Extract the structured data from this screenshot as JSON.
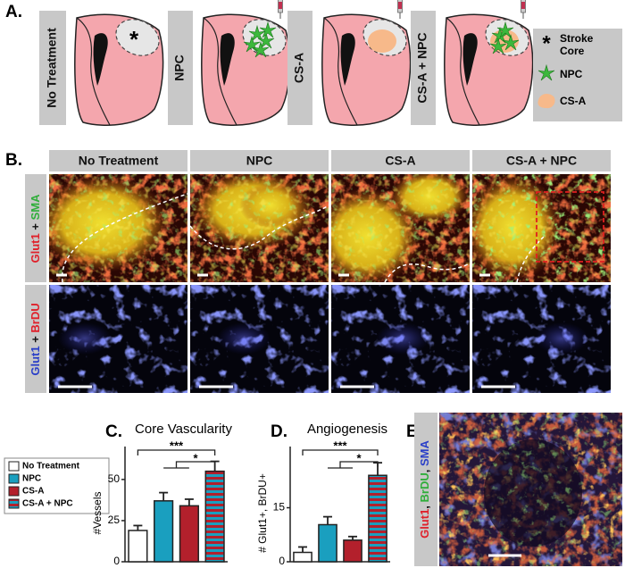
{
  "panel_a": {
    "label": "A.",
    "conditions": [
      "No Treatment",
      "NPC",
      "CS-A",
      "CS-A + NPC"
    ],
    "legend": [
      {
        "symbol": "*",
        "text": [
          "Stroke",
          "Core"
        ]
      },
      {
        "text": [
          "NPC"
        ]
      },
      {
        "text": [
          "CS-A"
        ]
      }
    ]
  },
  "panel_b": {
    "label": "B.",
    "columns": [
      "No Treatment",
      "NPC",
      "CS-A",
      "CS-A + NPC"
    ],
    "rows": [
      {
        "parts": [
          {
            "text": "Glut1",
            "color": "#e0202a"
          },
          {
            "text": " + ",
            "color": "#111111"
          },
          {
            "text": "SMA",
            "color": "#2fae3a"
          }
        ]
      },
      {
        "parts": [
          {
            "text": "Glut1",
            "color": "#2a3fc8"
          },
          {
            "text": " + ",
            "color": "#111111"
          },
          {
            "text": "BrDU",
            "color": "#e0202a"
          }
        ]
      }
    ]
  },
  "legend": [
    "No Treatment",
    "NPC",
    "CS-A",
    "CS-A + NPC"
  ],
  "chart_data": [
    {
      "type": "bar",
      "label": "C.",
      "title": "Core Vascularity",
      "ylabel": "#Vessels",
      "categories": [
        null,
        null,
        null,
        null
      ],
      "values": [
        19,
        37,
        34,
        55
      ],
      "errors": [
        3,
        5,
        4,
        6
      ],
      "colors": [
        "#ffffff",
        "#1a9fbf",
        "#b3202c",
        [
          "#b3202c",
          "#1a9fbf"
        ]
      ],
      "ylim": [
        0,
        70
      ],
      "yticks": [
        0,
        25,
        50
      ],
      "annotations": [
        "***",
        "*"
      ]
    },
    {
      "type": "bar",
      "label": "D.",
      "title": "Angiogenesis",
      "ylabel": "# Glut1+, BrDU+",
      "categories": [
        null,
        null,
        null,
        null
      ],
      "values": [
        2.6,
        10.3,
        6,
        24
      ],
      "errors": [
        1.5,
        2.2,
        1,
        3.5
      ],
      "colors": [
        "#ffffff",
        "#1a9fbf",
        "#b3202c",
        [
          "#b3202c",
          "#1a9fbf"
        ]
      ],
      "ylim": [
        0,
        32
      ],
      "yticks": [
        0,
        15
      ],
      "annotations": [
        "***",
        "*"
      ]
    }
  ],
  "panel_e": {
    "label": "E.",
    "parts": [
      {
        "text": "Glut1",
        "color": "#e0202a"
      },
      {
        "text": ", ",
        "color": "#111111"
      },
      {
        "text": "BrDU",
        "color": "#2fae3a"
      },
      {
        "text": ", ",
        "color": "#111111"
      },
      {
        "text": "SMA",
        "color": "#2a3fc8"
      }
    ]
  }
}
